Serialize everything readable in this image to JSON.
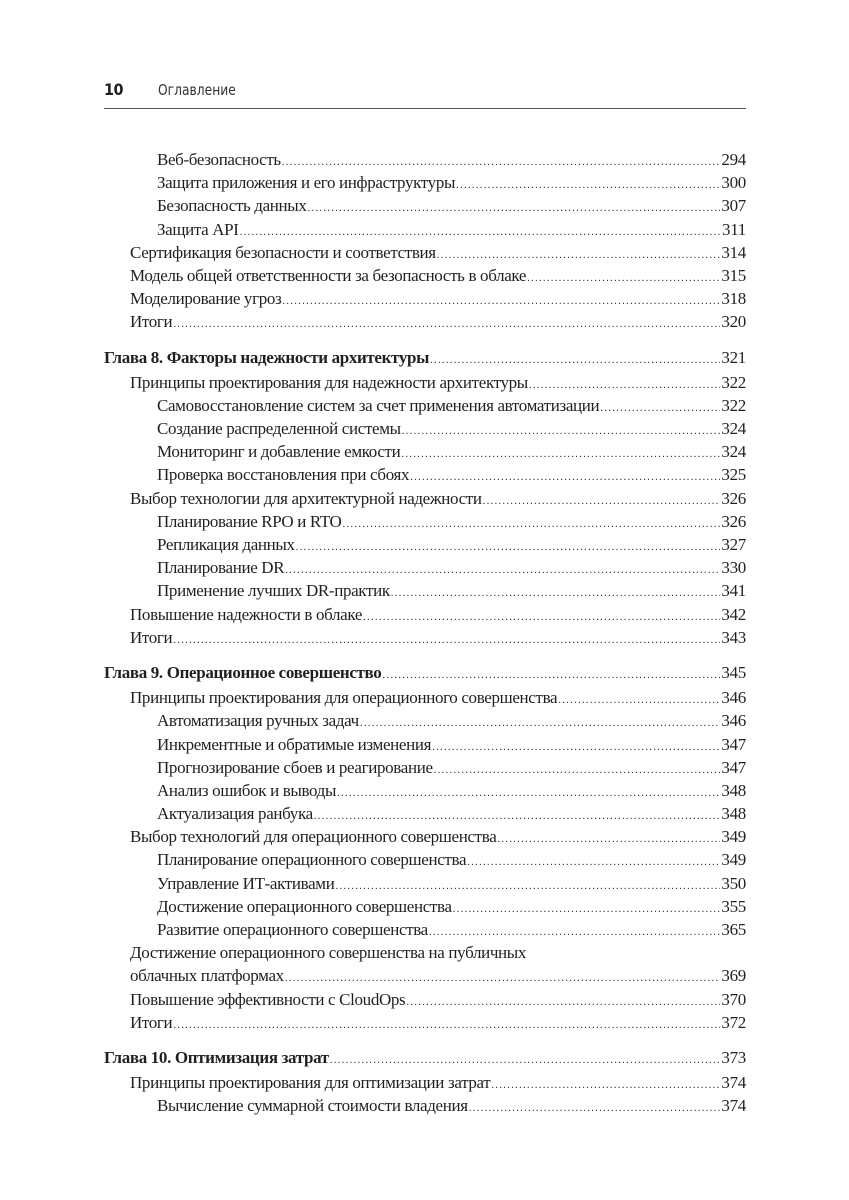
{
  "header": {
    "page_number": "10",
    "title": "Оглавление"
  },
  "entries": [
    {
      "level": 2,
      "text": "Веб-безопасность",
      "page": "294"
    },
    {
      "level": 2,
      "text": "Защита приложения и его инфраструктуры",
      "page": "300"
    },
    {
      "level": 2,
      "text": "Безопасность данных",
      "page": "307"
    },
    {
      "level": 2,
      "text": "Защита API",
      "page": "311"
    },
    {
      "level": 1,
      "text": "Сертификация безопасности и соответствия",
      "page": "314"
    },
    {
      "level": 1,
      "text": "Модель общей ответственности за безопасность в облаке",
      "page": "315"
    },
    {
      "level": 1,
      "text": "Моделирование угроз",
      "page": "318"
    },
    {
      "level": 1,
      "text": "Итоги",
      "page": "320"
    },
    {
      "level": 0,
      "text": "Глава 8. Факторы надежности архитектуры",
      "page": "321"
    },
    {
      "level": 1,
      "text": "Принципы проектирования для надежности архитектуры",
      "page": "322"
    },
    {
      "level": 2,
      "text": "Самовосстановление систем за счет применения автоматизации",
      "page": "322"
    },
    {
      "level": 2,
      "text": "Создание распределенной системы",
      "page": "324"
    },
    {
      "level": 2,
      "text": "Мониторинг и добавление емкости",
      "page": "324"
    },
    {
      "level": 2,
      "text": "Проверка восстановления при сбоях",
      "page": "325"
    },
    {
      "level": 1,
      "text": "Выбор технологии для архитектурной надежности",
      "page": "326"
    },
    {
      "level": 2,
      "text": "Планирование RPO и RTO",
      "page": "326"
    },
    {
      "level": 2,
      "text": "Репликация данных",
      "page": "327"
    },
    {
      "level": 2,
      "text": "Планирование DR",
      "page": "330"
    },
    {
      "level": 2,
      "text": "Применение лучших DR-практик",
      "page": "341"
    },
    {
      "level": 1,
      "text": "Повышение надежности в облаке",
      "page": "342"
    },
    {
      "level": 1,
      "text": "Итоги",
      "page": "343"
    },
    {
      "level": 0,
      "text": "Глава 9. Операционное совершенство",
      "page": "345"
    },
    {
      "level": 1,
      "text": "Принципы проектирования для операционного совершенства",
      "page": "346"
    },
    {
      "level": 2,
      "text": "Автоматизация ручных задач",
      "page": "346"
    },
    {
      "level": 2,
      "text": "Инкрементные и обратимые изменения",
      "page": "347"
    },
    {
      "level": 2,
      "text": "Прогнозирование сбоев и реагирование",
      "page": "347"
    },
    {
      "level": 2,
      "text": "Анализ ошибок и выводы",
      "page": "348"
    },
    {
      "level": 2,
      "text": "Актуализация ранбука",
      "page": "348"
    },
    {
      "level": 1,
      "text": "Выбор технологий для операционного совершенства",
      "page": "349"
    },
    {
      "level": 2,
      "text": "Планирование операционного совершенства",
      "page": "349"
    },
    {
      "level": 2,
      "text": "Управление ИТ-активами",
      "page": "350"
    },
    {
      "level": 2,
      "text": "Достижение операционного совершенства",
      "page": "355"
    },
    {
      "level": 2,
      "text": "Развитие операционного совершенства",
      "page": "365"
    },
    {
      "level": 1,
      "text_first_line": "Достижение операционного совершенства на публичных",
      "text": "облачных платформах",
      "page": "369"
    },
    {
      "level": 1,
      "text": "Повышение эффективности с CloudOps",
      "page": "370"
    },
    {
      "level": 1,
      "text": "Итоги",
      "page": "372"
    },
    {
      "level": 0,
      "text": "Глава 10. Оптимизация затрат",
      "page": "373"
    },
    {
      "level": 1,
      "text": "Принципы проектирования для оптимизации затрат",
      "page": "374"
    },
    {
      "level": 2,
      "text": "Вычисление суммарной стоимости владения",
      "page": "374"
    }
  ]
}
